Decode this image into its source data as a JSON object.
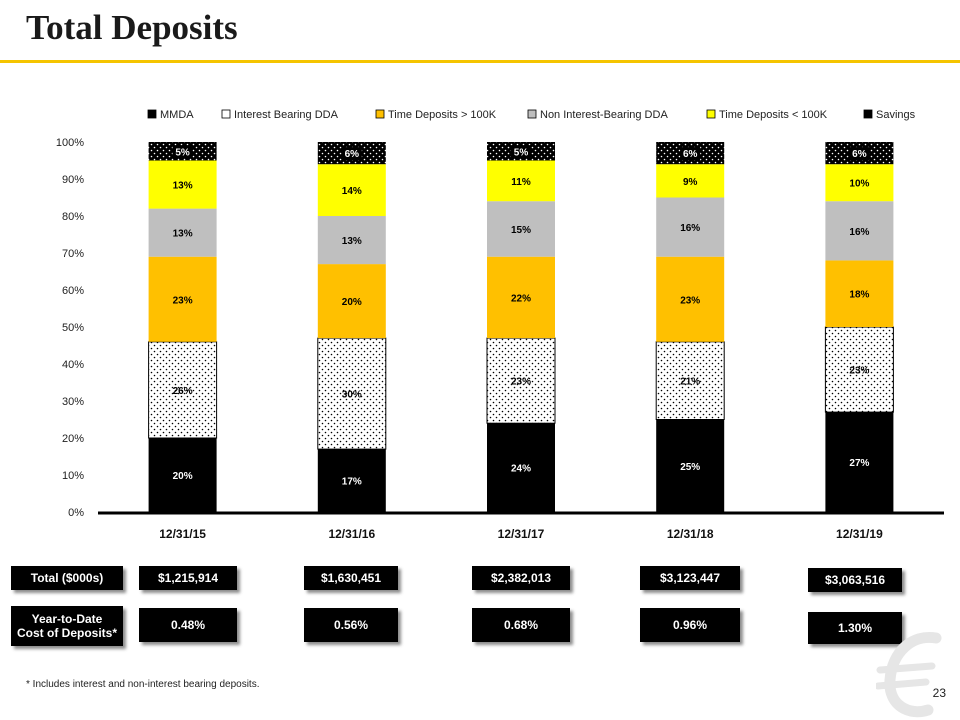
{
  "page": {
    "title": "Total Deposits",
    "footnote": "* Includes interest and non-interest bearing deposits.",
    "page_number": "23"
  },
  "table": {
    "total_label": "Total ($000s)",
    "cost_label": "Year-to-Date Cost of Deposits*",
    "totals": [
      "$1,215,914",
      "$1,630,451",
      "$2,382,013",
      "$3,123,447",
      "$3,063,516"
    ],
    "costs": [
      "0.48%",
      "0.56%",
      "0.68%",
      "0.96%",
      "1.30%"
    ]
  },
  "colors": {
    "accent": "#f5c400",
    "mmda": "#000000",
    "interest_bearing_dda": "#ffffff",
    "time_deposits_over_100k": "#ffc000",
    "non_interest_bearing_dda": "#bfbfbf",
    "time_deposits_under_100k": "#ffff00",
    "savings": "#000000"
  },
  "chart_data": {
    "type": "bar",
    "stacked": true,
    "categories": [
      "12/31/15",
      "12/31/16",
      "12/31/17",
      "12/31/18",
      "12/31/19"
    ],
    "ylim": [
      0,
      100
    ],
    "yticks": [
      "0%",
      "10%",
      "20%",
      "30%",
      "40%",
      "50%",
      "60%",
      "70%",
      "80%",
      "90%",
      "100%"
    ],
    "legend_position": "top",
    "series": [
      {
        "name": "MMDA",
        "values": [
          20,
          17,
          24,
          25,
          27
        ],
        "labels": [
          "20%",
          "17%",
          "24%",
          "25%",
          "27%"
        ],
        "color": "#000000",
        "pattern": "solid",
        "label_color": "#ffffff"
      },
      {
        "name": "Interest Bearing DDA",
        "values": [
          26,
          30,
          23,
          21,
          23
        ],
        "labels": [
          "26%",
          "30%",
          "23%",
          "21%",
          "23%"
        ],
        "color": "#ffffff",
        "pattern": "dots-dark",
        "label_color": "#000000"
      },
      {
        "name": "Time Deposits > 100K",
        "values": [
          23,
          20,
          22,
          23,
          18
        ],
        "labels": [
          "23%",
          "20%",
          "22%",
          "23%",
          "18%"
        ],
        "color": "#ffc000",
        "pattern": "solid",
        "label_color": "#000000"
      },
      {
        "name": "Non Interest-Bearing DDA",
        "values": [
          13,
          13,
          15,
          16,
          16
        ],
        "labels": [
          "13%",
          "13%",
          "15%",
          "16%",
          "16%"
        ],
        "color": "#bfbfbf",
        "pattern": "solid",
        "label_color": "#000000"
      },
      {
        "name": "Time Deposits < 100K",
        "values": [
          13,
          14,
          11,
          9,
          10
        ],
        "labels": [
          "13%",
          "14%",
          "11%",
          "9%",
          "10%"
        ],
        "color": "#ffff00",
        "pattern": "solid",
        "label_color": "#000000"
      },
      {
        "name": "Savings",
        "values": [
          5,
          6,
          5,
          6,
          6
        ],
        "labels": [
          "5%",
          "6%",
          "5%",
          "6%",
          "6%"
        ],
        "color": "#000000",
        "pattern": "dots-light",
        "label_color": "#ffffff"
      }
    ]
  }
}
